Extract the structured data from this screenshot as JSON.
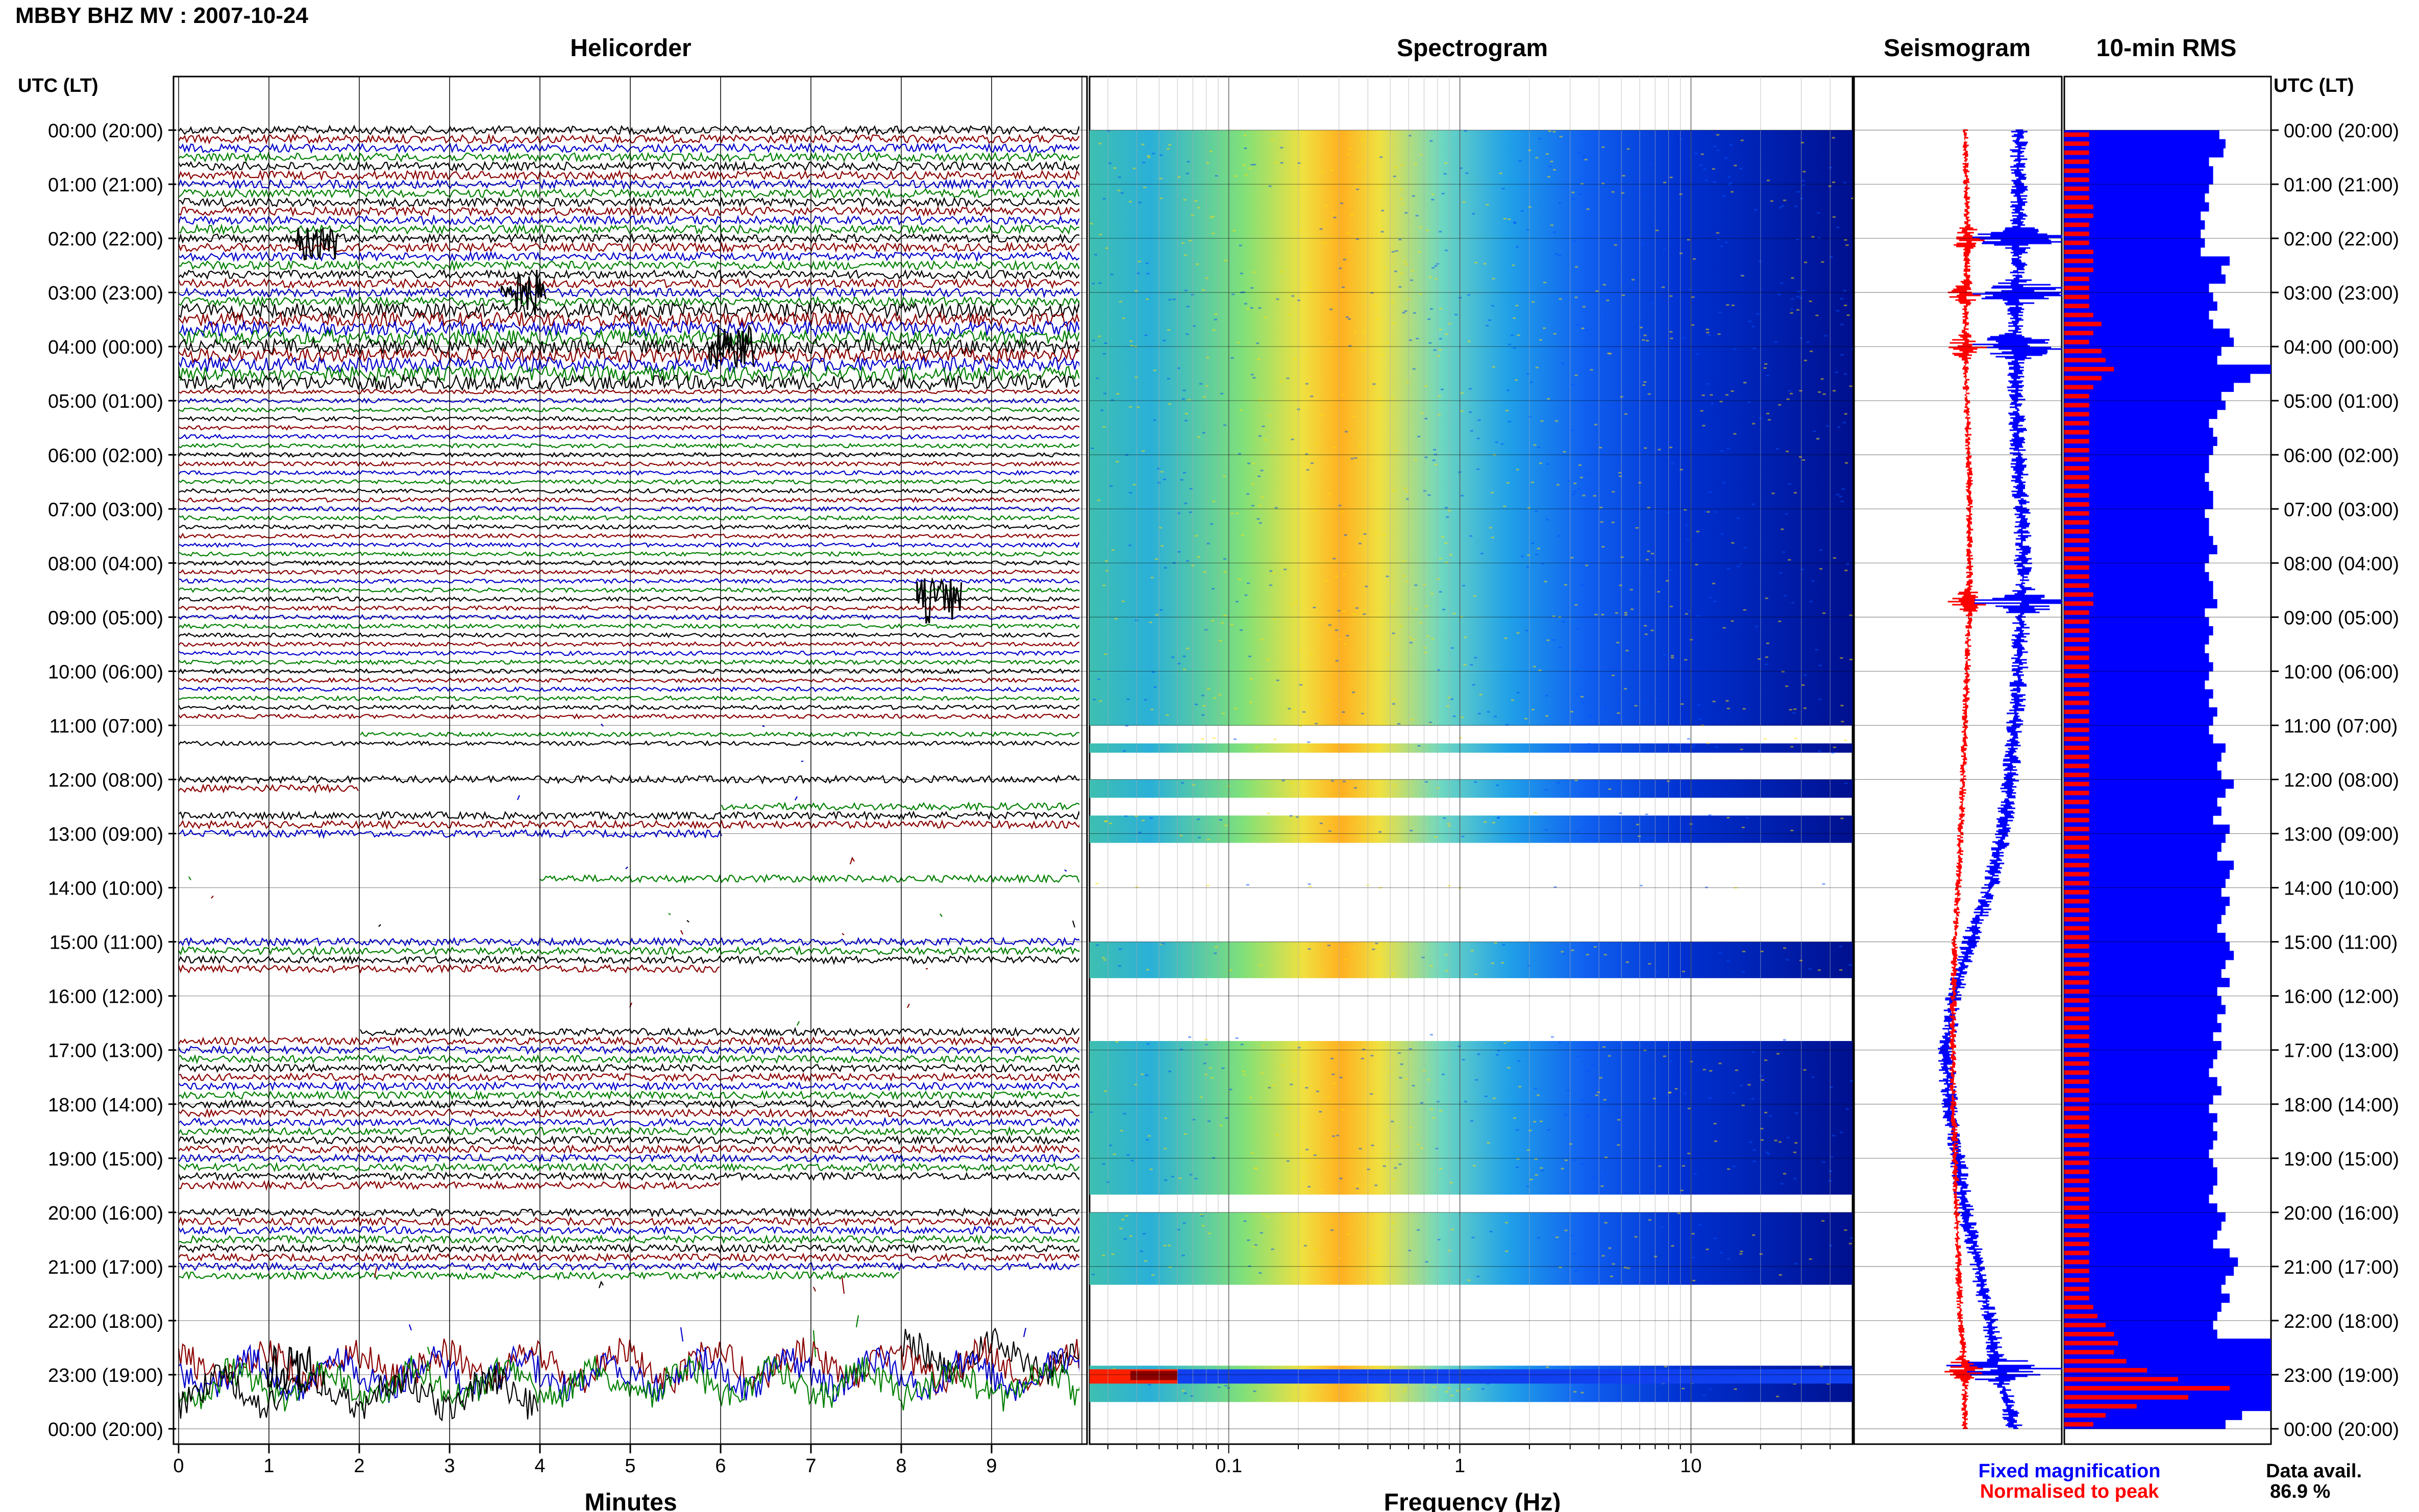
{
  "page_title": "MBBY BHZ MV : 2007-10-24",
  "panels": {
    "helicorder": "Helicorder",
    "spectrogram": "Spectrogram",
    "seismogram": "Seismogram",
    "rms": "10-min RMS"
  },
  "axis_headers": {
    "left": "UTC (LT)",
    "right": "UTC (LT)"
  },
  "x_labels": {
    "helicorder": "Minutes",
    "spectrogram": "Frequency (Hz)"
  },
  "legend": {
    "fixed": "Fixed magnification",
    "normalised": "Normalised to peak",
    "fixed_color": "#0000ff",
    "normalised_color": "#ff0000"
  },
  "data_avail": {
    "label": "Data avail.",
    "value": "86.9 %"
  },
  "colors": {
    "trace_cycle": [
      "#000000",
      "#8b0000",
      "#0000cc",
      "#008000"
    ],
    "spectrogram_ramp": [
      "#00008b",
      "#0000ff",
      "#00bfff",
      "#40e0d0",
      "#7fffd4",
      "#ffff00",
      "#ffa500",
      "#ff0000",
      "#8b0000"
    ]
  },
  "chart_data": {
    "type": "heatmap",
    "hours": [
      "00:00 (20:00)",
      "01:00 (21:00)",
      "02:00 (22:00)",
      "03:00 (23:00)",
      "04:00 (00:00)",
      "05:00 (01:00)",
      "06:00 (02:00)",
      "07:00 (03:00)",
      "08:00 (04:00)",
      "09:00 (05:00)",
      "10:00 (06:00)",
      "11:00 (07:00)",
      "12:00 (08:00)",
      "13:00 (09:00)",
      "14:00 (10:00)",
      "15:00 (11:00)",
      "16:00 (12:00)",
      "17:00 (13:00)",
      "18:00 (14:00)",
      "19:00 (15:00)",
      "20:00 (16:00)",
      "21:00 (17:00)",
      "22:00 (18:00)",
      "23:00 (19:00)",
      "00:00 (20:00)"
    ],
    "minute_ticks": [
      "0",
      "1",
      "2",
      "3",
      "4",
      "5",
      "6",
      "7",
      "8",
      "9"
    ],
    "freq_ticks": [
      "0.1",
      "1",
      "10"
    ],
    "freq_range_hz": [
      0.025,
      50
    ],
    "freq_ticks_hz": [
      0.1,
      1,
      10
    ],
    "spectral_peak_hz": 0.3,
    "gap_hours": [
      [
        11.0,
        11.2
      ],
      [
        11.5,
        12.0
      ],
      [
        12.2,
        12.6
      ],
      [
        13.1,
        13.9
      ],
      [
        14.0,
        15.0
      ],
      [
        15.6,
        16.7
      ],
      [
        19.6,
        20.0
      ],
      [
        21.3,
        22.8
      ],
      [
        23.4,
        24.1
      ]
    ],
    "fixed_seismogram_offset": [
      0.35,
      0.35,
      0.35,
      0.33,
      0.3,
      0.32,
      0.35,
      0.38,
      0.4,
      0.38,
      0.35,
      0.3,
      0.25,
      0.15,
      0.0,
      -0.25,
      -0.45,
      -0.55,
      -0.5,
      -0.4,
      -0.3,
      -0.15,
      0.0,
      0.1,
      0.3
    ],
    "normalised_seismogram_offset": [
      0.0,
      0.02,
      0.03,
      0.02,
      0.0,
      0.02,
      0.05,
      0.06,
      0.06,
      0.05,
      0.03,
      0.0,
      -0.02,
      -0.05,
      -0.08,
      -0.12,
      -0.14,
      -0.15,
      -0.14,
      -0.12,
      -0.1,
      -0.08,
      -0.05,
      0.0,
      0.0
    ],
    "events_hours": [
      2.0,
      3.0,
      4.0,
      8.7,
      22.9
    ],
    "rms_fixed": [
      0.75,
      0.78,
      0.77,
      0.7,
      0.72,
      0.72,
      0.7,
      0.68,
      0.7,
      0.66,
      0.68,
      0.66,
      0.68,
      0.66,
      0.8,
      0.76,
      0.78,
      0.7,
      0.72,
      0.74,
      0.7,
      0.72,
      0.8,
      0.82,
      0.76,
      0.74,
      1.0,
      0.9,
      0.82,
      0.76,
      0.78,
      0.74,
      0.7,
      0.72,
      0.74,
      0.72,
      0.7,
      0.7,
      0.68,
      0.7,
      0.72,
      0.72,
      0.68,
      0.7,
      0.7,
      0.72,
      0.74,
      0.7,
      0.68,
      0.7,
      0.72,
      0.72,
      0.74,
      0.68,
      0.7,
      0.72,
      0.7,
      0.68,
      0.7,
      0.72,
      0.7,
      0.68,
      0.72,
      0.7,
      0.74,
      0.72,
      0.7,
      0.72,
      0.78,
      0.76,
      0.74,
      0.76,
      0.82,
      0.78,
      0.74,
      0.76,
      0.72,
      0.8,
      0.78,
      0.76,
      0.74,
      0.82,
      0.8,
      0.78,
      0.76,
      0.8,
      0.78,
      0.76,
      0.74,
      0.78,
      0.8,
      0.82,
      0.78,
      0.76,
      0.8,
      0.74,
      0.76,
      0.78,
      0.74,
      0.76,
      0.72,
      0.76,
      0.74,
      0.72,
      0.7,
      0.74,
      0.76,
      0.72,
      0.7,
      0.74,
      0.72,
      0.74,
      0.72,
      0.7,
      0.72,
      0.74,
      0.74,
      0.72,
      0.7,
      0.74,
      0.78,
      0.76,
      0.74,
      0.72,
      0.8,
      0.84,
      0.82,
      0.78,
      0.76,
      0.8,
      0.76,
      0.74,
      0.72,
      0.74,
      1.0,
      1.0,
      1.0,
      1.0,
      1.0,
      1.0,
      1.0,
      1.0,
      0.86,
      0.78
    ],
    "rms_normalised": [
      0.12,
      0.12,
      0.12,
      0.12,
      0.12,
      0.12,
      0.12,
      0.12,
      0.14,
      0.14,
      0.12,
      0.12,
      0.12,
      0.14,
      0.14,
      0.14,
      0.12,
      0.12,
      0.12,
      0.12,
      0.14,
      0.18,
      0.14,
      0.12,
      0.18,
      0.2,
      0.24,
      0.18,
      0.14,
      0.12,
      0.12,
      0.12,
      0.12,
      0.12,
      0.12,
      0.12,
      0.12,
      0.12,
      0.12,
      0.12,
      0.12,
      0.12,
      0.12,
      0.12,
      0.12,
      0.12,
      0.12,
      0.12,
      0.12,
      0.12,
      0.12,
      0.14,
      0.14,
      0.12,
      0.12,
      0.12,
      0.12,
      0.12,
      0.12,
      0.12,
      0.12,
      0.12,
      0.12,
      0.12,
      0.12,
      0.12,
      0.12,
      0.12,
      0.12,
      0.12,
      0.12,
      0.12,
      0.12,
      0.12,
      0.12,
      0.12,
      0.12,
      0.12,
      0.12,
      0.12,
      0.12,
      0.12,
      0.12,
      0.12,
      0.12,
      0.12,
      0.12,
      0.12,
      0.12,
      0.12,
      0.12,
      0.12,
      0.12,
      0.12,
      0.12,
      0.12,
      0.12,
      0.12,
      0.12,
      0.12,
      0.12,
      0.12,
      0.12,
      0.12,
      0.12,
      0.12,
      0.12,
      0.12,
      0.12,
      0.12,
      0.12,
      0.12,
      0.12,
      0.12,
      0.12,
      0.12,
      0.12,
      0.12,
      0.12,
      0.12,
      0.12,
      0.12,
      0.12,
      0.12,
      0.12,
      0.12,
      0.12,
      0.12,
      0.12,
      0.12,
      0.14,
      0.16,
      0.2,
      0.24,
      0.26,
      0.24,
      0.3,
      0.4,
      0.55,
      0.8,
      0.6,
      0.35,
      0.2,
      0.14
    ]
  }
}
